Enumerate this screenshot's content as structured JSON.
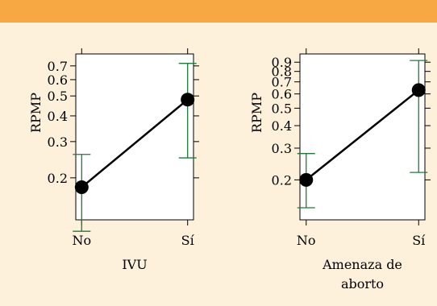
{
  "colors": {
    "background": "#fdf1dc",
    "band": "#f7a842",
    "panel": "#ffffff",
    "error_bar": "#1e7a3a",
    "line": "#000000"
  },
  "chart_data": [
    {
      "type": "line",
      "xlabel": "IVU",
      "ylabel": "RPMP",
      "categories": [
        "No",
        "Sí"
      ],
      "values": [
        0.18,
        0.48
      ],
      "ci_low": [
        0.11,
        0.25
      ],
      "ci_high": [
        0.26,
        0.72
      ],
      "yscale": "log",
      "ylim": [
        0.125,
        0.8
      ],
      "yticks": [
        0.2,
        0.3,
        0.4,
        0.5,
        0.6,
        0.7
      ],
      "ytick_labels": [
        "0.2",
        "0.3",
        "0.4",
        "0.5",
        "0.6",
        "0.7"
      ],
      "grid": false
    },
    {
      "type": "line",
      "xlabel": "Amenaza de aborto",
      "ylabel": "RPMP",
      "categories": [
        "No",
        "Sí"
      ],
      "values": [
        0.2,
        0.63
      ],
      "ci_low": [
        0.14,
        0.22
      ],
      "ci_high": [
        0.28,
        0.92
      ],
      "yscale": "log",
      "ylim": [
        0.12,
        1.0
      ],
      "yticks": [
        0.2,
        0.3,
        0.4,
        0.5,
        0.6,
        0.7,
        0.8,
        0.9
      ],
      "ytick_labels": [
        "0.2",
        "0.3",
        "0.4",
        "0.5",
        "0.6",
        "0.7",
        "0.8",
        "0.9"
      ],
      "grid": false
    }
  ]
}
